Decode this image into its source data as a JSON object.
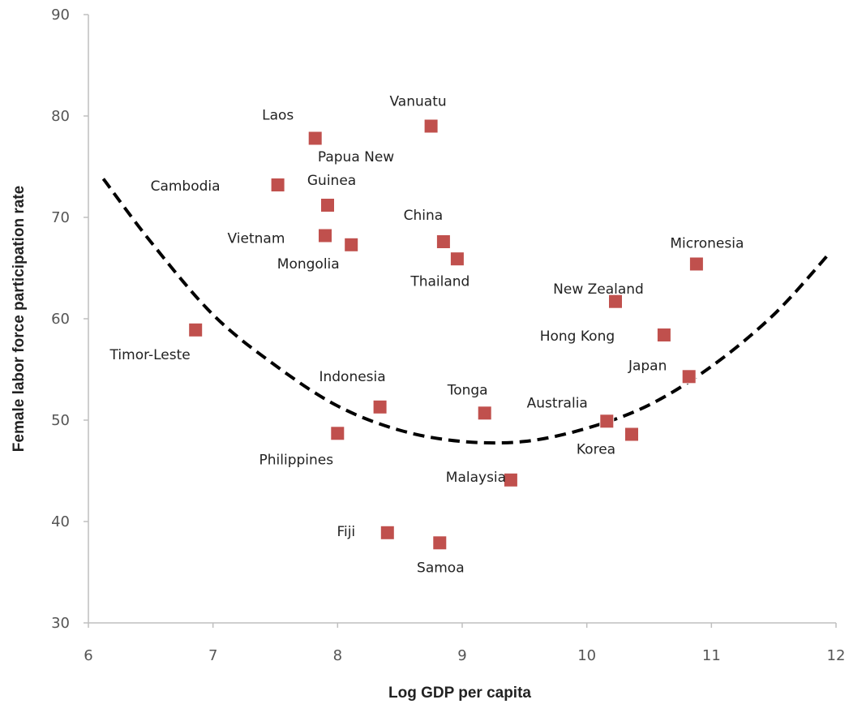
{
  "chart_data": {
    "type": "scatter",
    "title": "",
    "xlabel": "Log GDP per capita",
    "ylabel": "Female labor force participation rate",
    "xlim": [
      6,
      12
    ],
    "ylim": [
      30,
      90
    ],
    "xticks": [
      "6",
      "7",
      "8",
      "9",
      "10",
      "11",
      "12"
    ],
    "yticks": [
      "30",
      "40",
      "50",
      "60",
      "70",
      "80",
      "90"
    ],
    "grid": false,
    "legend": "none",
    "marker_color": "#c0504d",
    "trend_color": "#000000",
    "points": [
      {
        "label": "Laos",
        "x": 7.82,
        "y": 77.8
      },
      {
        "label": "Vanuatu",
        "x": 8.75,
        "y": 79.0
      },
      {
        "label": "Cambodia",
        "x": 7.52,
        "y": 73.2
      },
      {
        "label": "Papua New Guinea",
        "x": 7.92,
        "y": 71.2
      },
      {
        "label": "Vietnam",
        "x": 7.9,
        "y": 68.2
      },
      {
        "label": "Mongolia",
        "x": 8.11,
        "y": 67.3
      },
      {
        "label": "China",
        "x": 8.85,
        "y": 67.6
      },
      {
        "label": "Thailand",
        "x": 8.96,
        "y": 65.9
      },
      {
        "label": "Micronesia",
        "x": 10.88,
        "y": 65.4
      },
      {
        "label": "New Zealand",
        "x": 10.23,
        "y": 61.7
      },
      {
        "label": "Timor-Leste",
        "x": 6.86,
        "y": 58.9
      },
      {
        "label": "Hong Kong",
        "x": 10.62,
        "y": 58.4
      },
      {
        "label": "Japan",
        "x": 10.82,
        "y": 54.3
      },
      {
        "label": "Indonesia",
        "x": 8.34,
        "y": 51.3
      },
      {
        "label": "Tonga",
        "x": 9.18,
        "y": 50.7
      },
      {
        "label": "Australia",
        "x": 10.16,
        "y": 49.9
      },
      {
        "label": "Philippines",
        "x": 8.0,
        "y": 48.7
      },
      {
        "label": "Korea",
        "x": 10.36,
        "y": 48.6
      },
      {
        "label": "Malaysia",
        "x": 9.39,
        "y": 44.1
      },
      {
        "label": "Fiji",
        "x": 8.4,
        "y": 38.9
      },
      {
        "label": "Samoa",
        "x": 8.82,
        "y": 37.9
      }
    ],
    "trendline": {
      "type": "quadratic",
      "x": [
        6.12,
        6.5,
        7.0,
        7.5,
        8.0,
        8.5,
        9.0,
        9.5,
        10.0,
        10.5,
        11.0,
        11.5,
        11.95
      ],
      "y": [
        73.8,
        67.6,
        60.4,
        55.4,
        51.4,
        49.0,
        47.9,
        47.9,
        49.2,
        51.5,
        55.3,
        60.4,
        66.5
      ]
    }
  }
}
